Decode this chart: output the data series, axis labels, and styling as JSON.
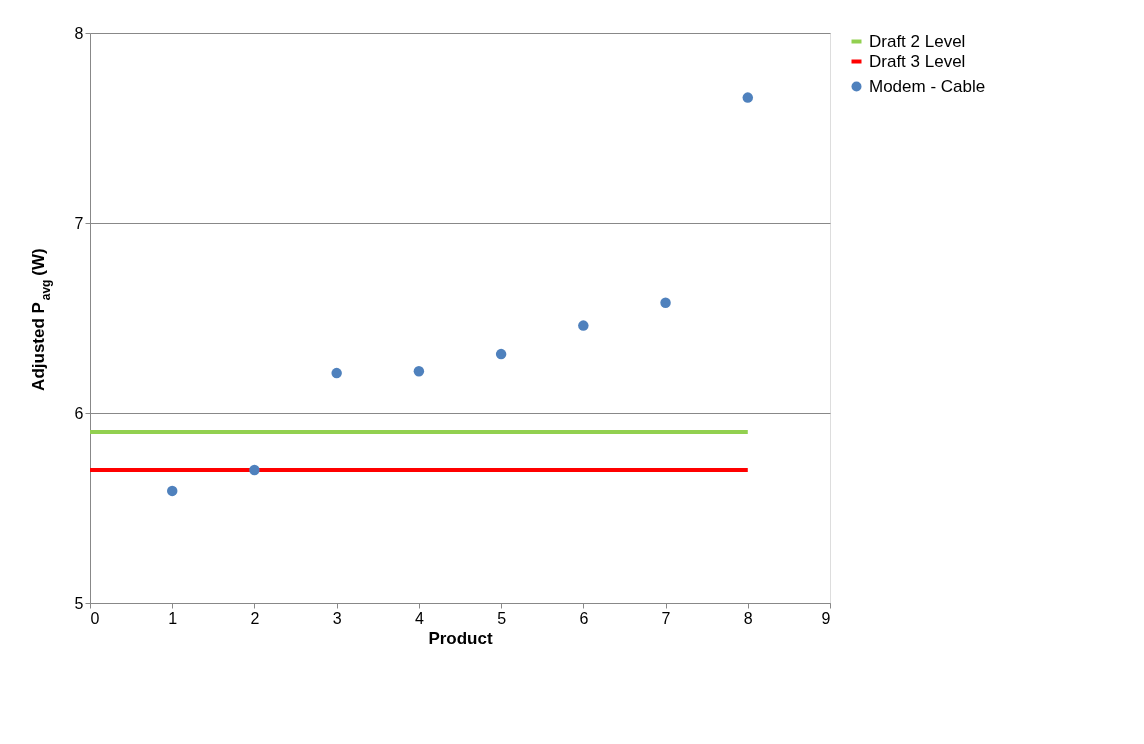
{
  "chart_data": {
    "type": "scatter",
    "xlabel": "Product",
    "ylabel": "Adjusted P$_{avg}$ (W)",
    "xlim": [
      0,
      9
    ],
    "xticks": [
      0,
      1,
      2,
      3,
      4,
      5,
      6,
      7,
      8,
      9
    ],
    "ylim": [
      5,
      8
    ],
    "yticks": [
      5,
      6,
      7,
      8
    ],
    "grid": "y",
    "legend": "right",
    "series": [
      {
        "name": "Modem - Cable",
        "color": "#4f81bd",
        "marker": "circle",
        "x": [
          1,
          2,
          3,
          4,
          5,
          6,
          7,
          8
        ],
        "values": [
          5.59,
          5.7,
          6.21,
          6.22,
          6.31,
          6.46,
          6.58,
          7.66
        ]
      },
      {
        "name": "Draft 2 Level",
        "color": "#92d050",
        "type": "line",
        "line_style": "solid",
        "marker": "none",
        "x": [
          0,
          8
        ],
        "values": [
          5.9,
          5.9
        ]
      },
      {
        "name": "Draft 3 Level",
        "color": "#ff0000",
        "type": "line",
        "line_style": "solid",
        "marker": "none",
        "x": [
          0,
          8
        ],
        "values": [
          5.7,
          5.7
        ]
      }
    ]
  }
}
